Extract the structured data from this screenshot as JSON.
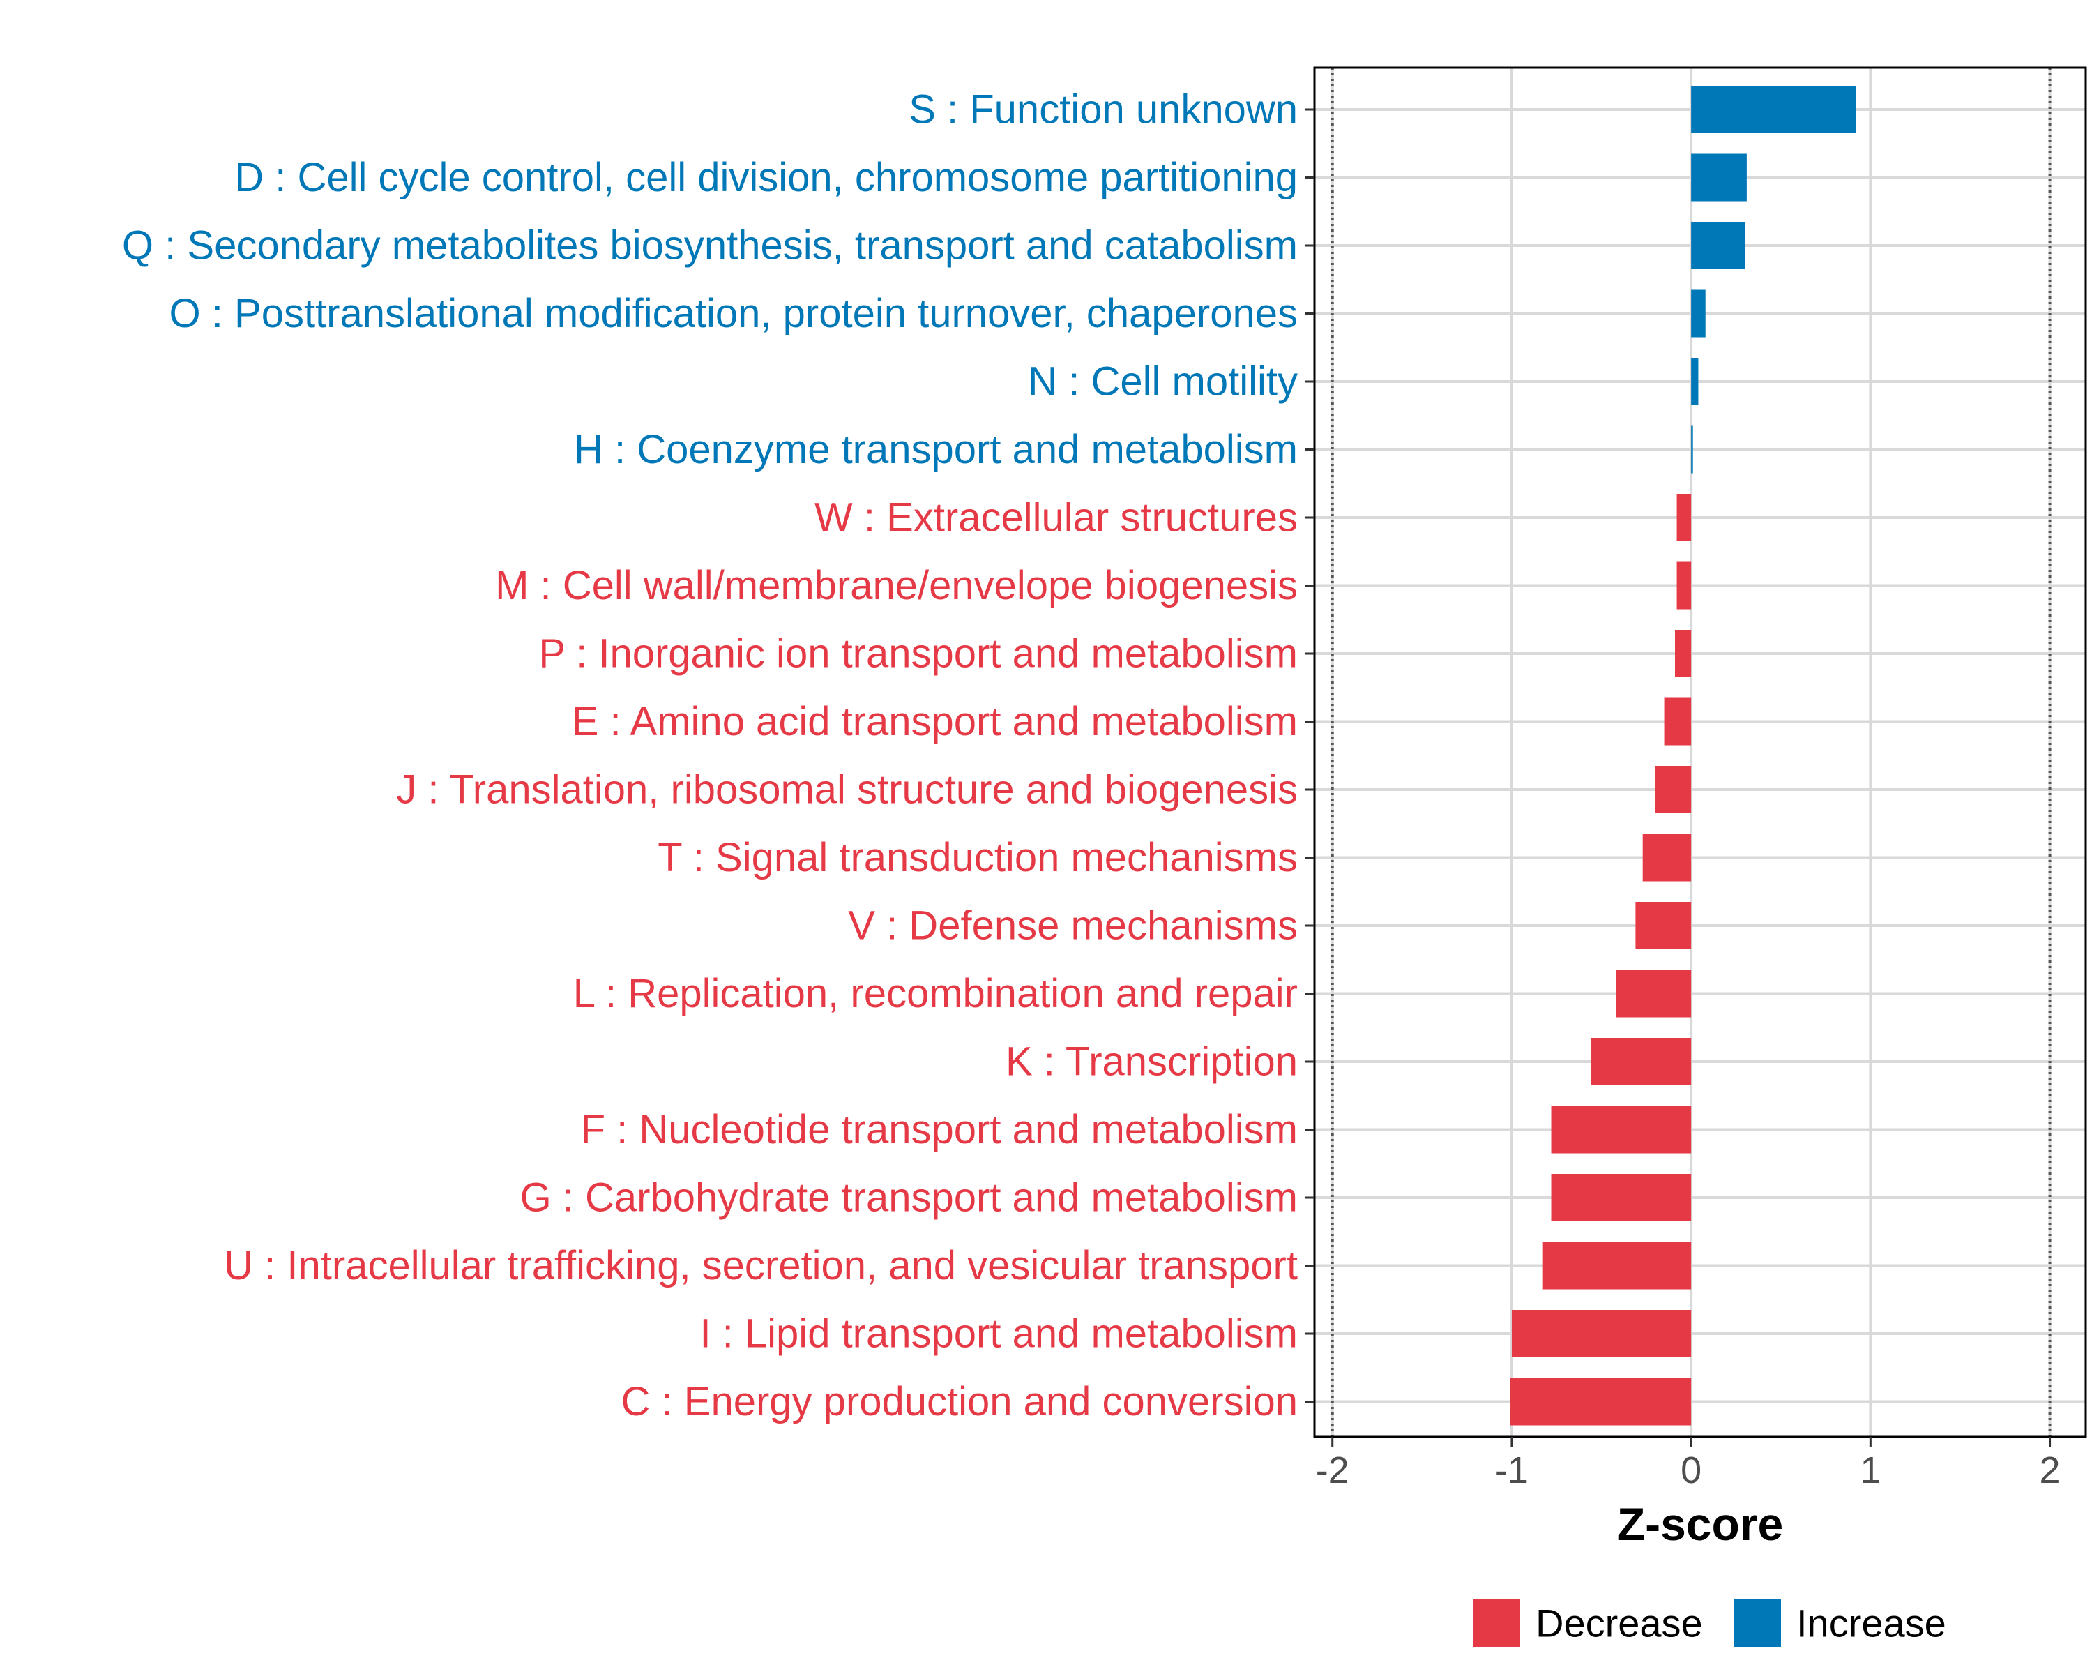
{
  "chart_data": {
    "type": "bar",
    "orientation": "horizontal",
    "xlabel": "Z-score",
    "ylabel": "",
    "xlim": [
      -2.1,
      2.2
    ],
    "xticks": [
      -2,
      -1,
      0,
      1,
      2
    ],
    "xtick_labels": [
      "-2",
      "-1",
      "0",
      "1",
      "2"
    ],
    "reference_lines": [
      -2,
      2
    ],
    "grid": true,
    "categories": [
      "S : Function unknown",
      "D : Cell cycle control, cell division, chromosome partitioning",
      "Q : Secondary metabolites biosynthesis, transport and catabolism",
      "O : Posttranslational modification, protein turnover, chaperones",
      "N : Cell motility",
      "H : Coenzyme transport and metabolism",
      "W : Extracellular structures",
      "M : Cell wall/membrane/envelope biogenesis",
      "P : Inorganic ion transport and metabolism",
      "E : Amino acid transport and metabolism",
      "J : Translation, ribosomal structure and biogenesis",
      "T : Signal transduction mechanisms",
      "V : Defense mechanisms",
      "L : Replication, recombination and repair",
      "K : Transcription",
      "F : Nucleotide transport and metabolism",
      "G : Carbohydrate transport and metabolism",
      "U : Intracellular trafficking, secretion, and vesicular transport",
      "I : Lipid transport and metabolism",
      "C : Energy production and conversion"
    ],
    "values": [
      0.92,
      0.31,
      0.3,
      0.08,
      0.04,
      0.01,
      -0.08,
      -0.08,
      -0.09,
      -0.15,
      -0.2,
      -0.27,
      -0.31,
      -0.42,
      -0.56,
      -0.78,
      -0.78,
      -0.83,
      -1.0,
      -1.01
    ],
    "groups": [
      "Increase",
      "Increase",
      "Increase",
      "Increase",
      "Increase",
      "Increase",
      "Decrease",
      "Decrease",
      "Decrease",
      "Decrease",
      "Decrease",
      "Decrease",
      "Decrease",
      "Decrease",
      "Decrease",
      "Decrease",
      "Decrease",
      "Decrease",
      "Decrease",
      "Decrease"
    ],
    "legend": {
      "position": "bottom",
      "entries": [
        {
          "label": "Decrease",
          "color": "#e63946"
        },
        {
          "label": "Increase",
          "color": "#0077b6"
        }
      ]
    }
  }
}
